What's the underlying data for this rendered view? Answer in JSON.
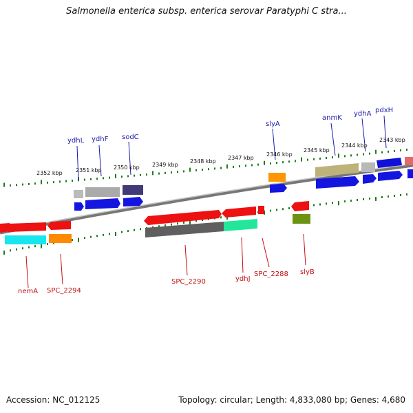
{
  "title": "Salmonella enterica subsp. enterica serovar Paratyphi C stra...",
  "footer": {
    "accession": "Accession: NC_012125",
    "summary": "Topology: circular; Length: 4,833,080 bp; Genes: 4,680"
  },
  "colors": {
    "label_top": "#1a1aa8",
    "label_bottom": "#c21010",
    "tick": "#1f7a1f",
    "backbone": "#8a8a8a"
  },
  "scale_labels": [
    "2352 kbp",
    "2351 kbp",
    "2350 kbp",
    "2349 kbp",
    "2348 kbp",
    "2347 kbp",
    "2346 kbp",
    "2345 kbp",
    "2344 kbp",
    "2343 kbp"
  ],
  "genes_top": [
    "ydhL",
    "ydhF",
    "sodC",
    "slyA",
    "anmK",
    "ydhA",
    "pdxH"
  ],
  "genes_bottom": [
    "nemA",
    "SPC_2294",
    "SPC_2290",
    "ydhJ",
    "SPC_2288",
    "slyB"
  ]
}
